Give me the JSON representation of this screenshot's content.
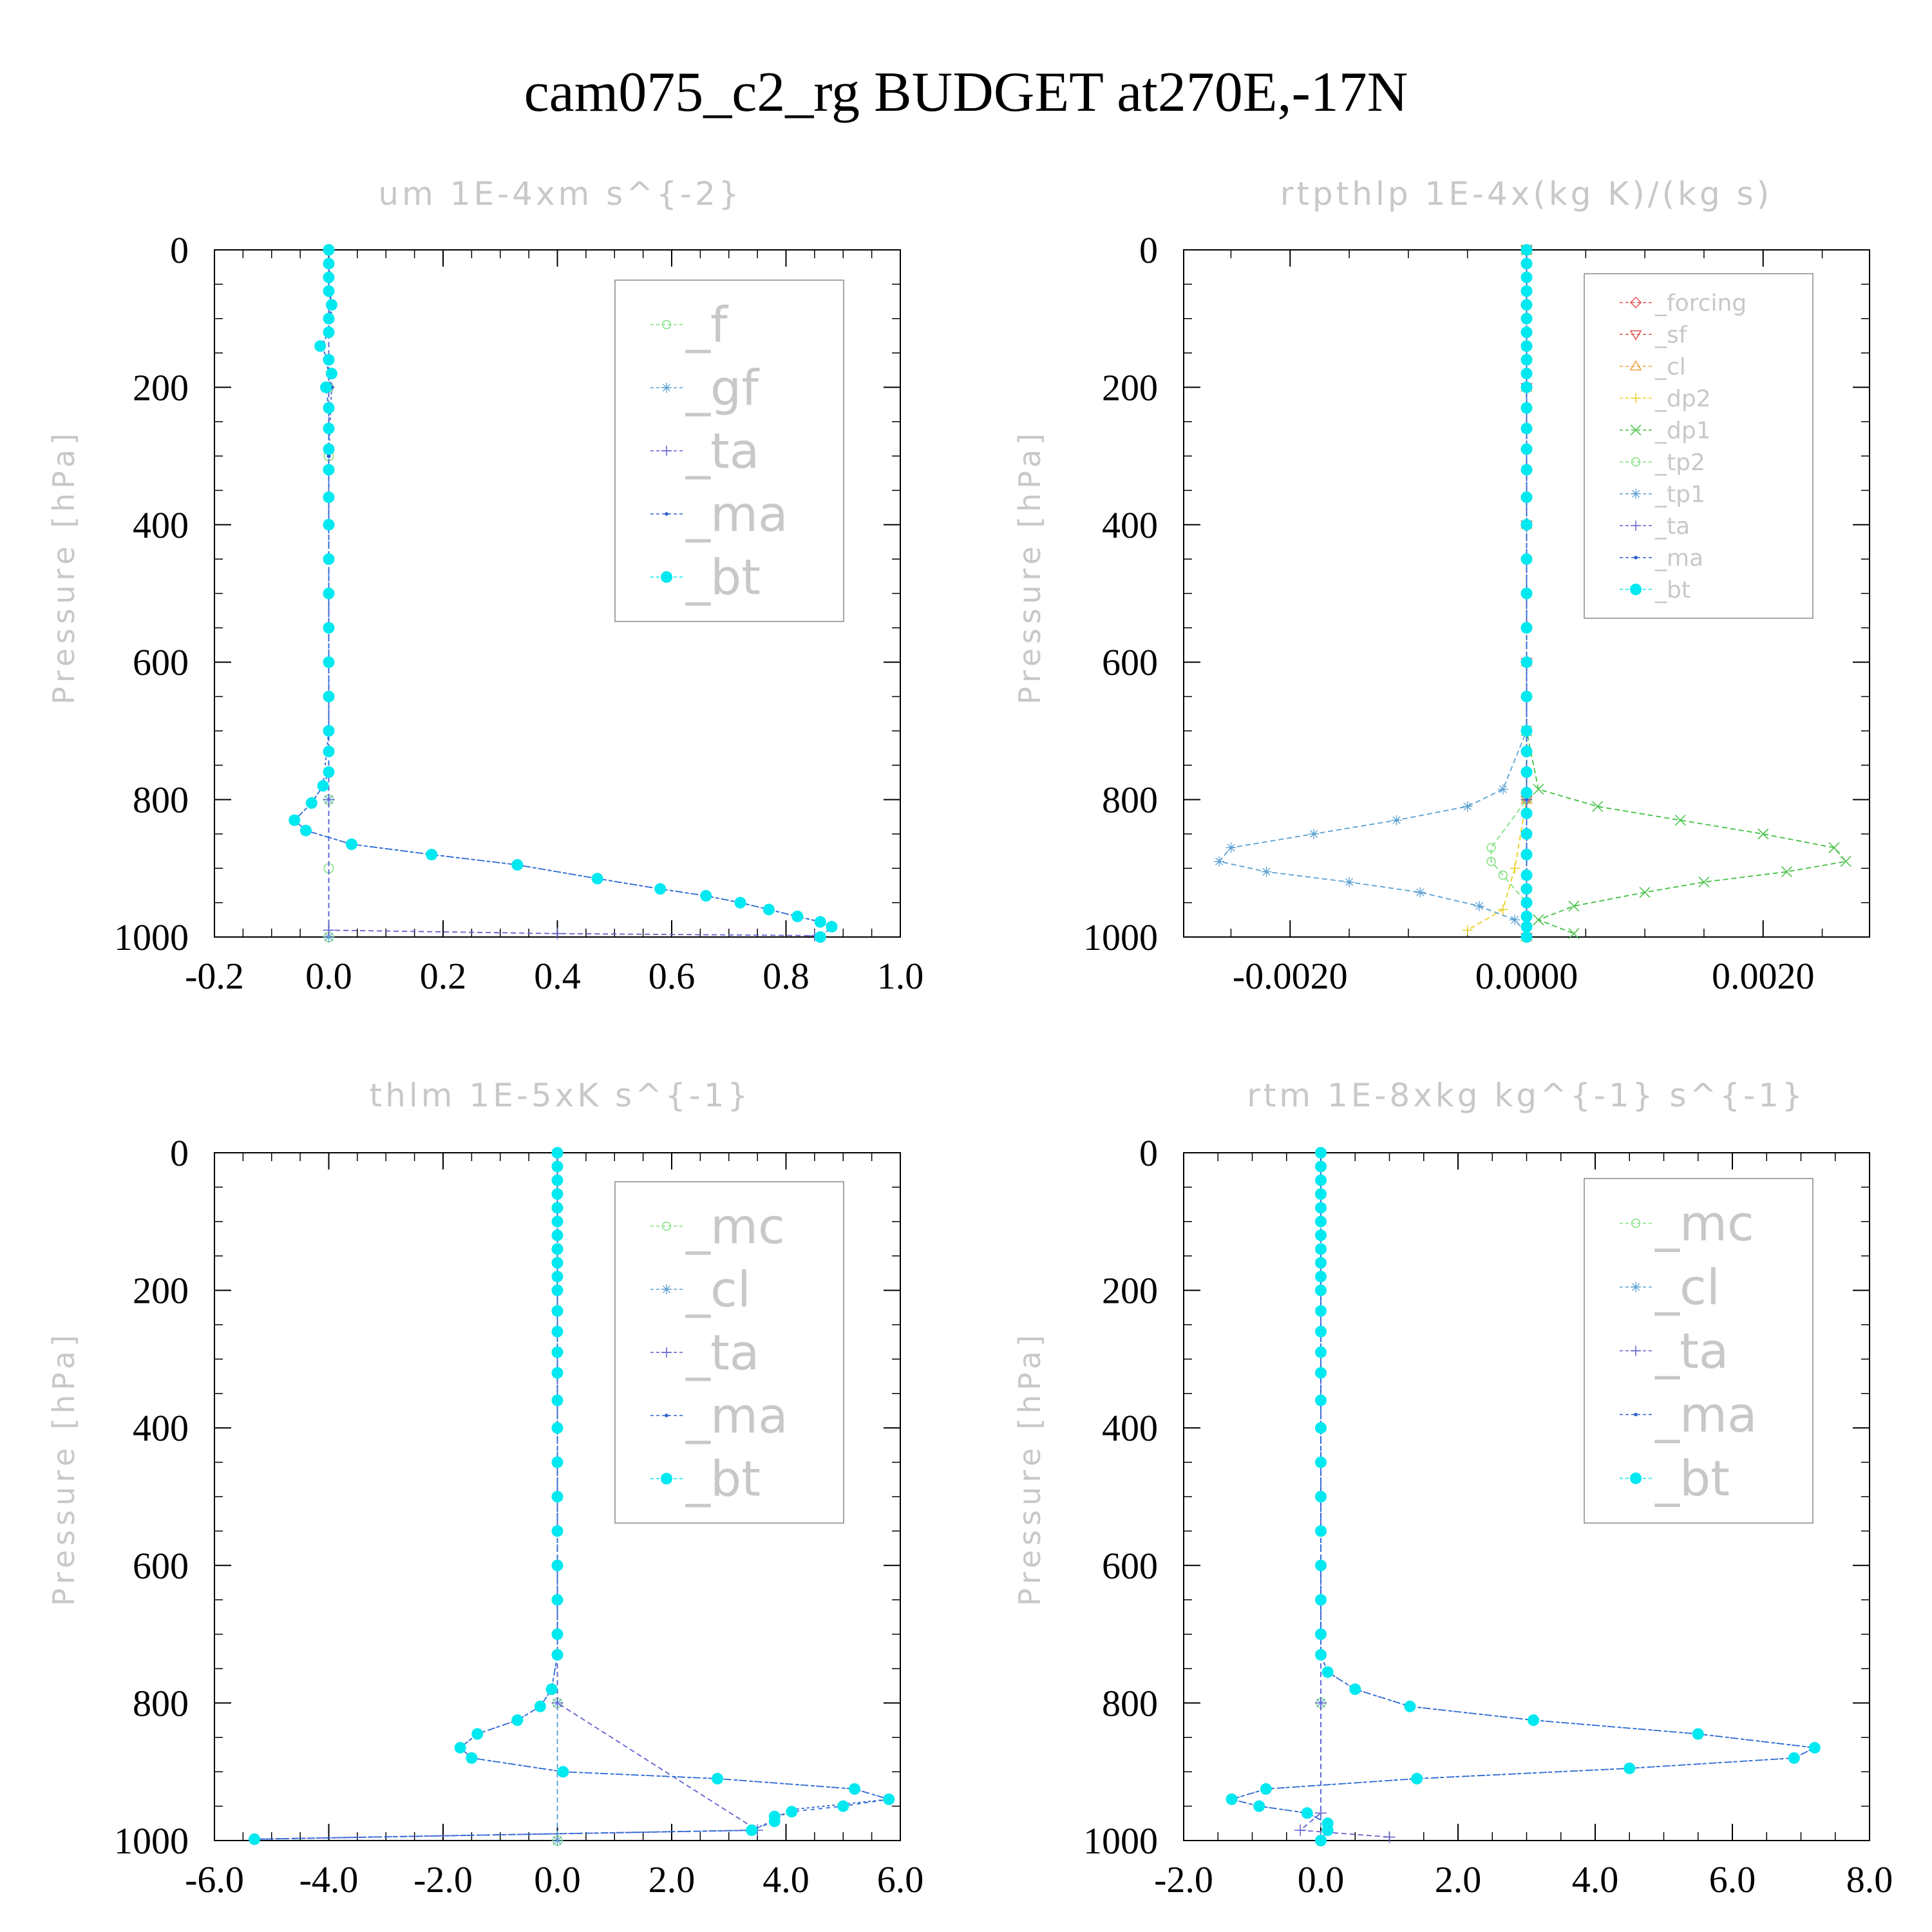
{
  "title": "cam075_c2_rg  BUDGET at270E,-17N",
  "chart_data": [
    {
      "type": "line",
      "title": "um   1E-4xm s^{-2}",
      "ylabel": "Pressure [hPa]",
      "ylim": [
        0,
        1000
      ],
      "y_inverted": true,
      "xlim": [
        -0.2,
        1.0
      ],
      "xticks": [
        "-0.2",
        "0.0",
        "0.2",
        "0.4",
        "0.6",
        "0.8",
        "1.0"
      ],
      "yticks": [
        "0",
        "200",
        "400",
        "600",
        "800",
        "1000"
      ],
      "legend_placement": "top-right",
      "legend_font": "large",
      "series": [
        {
          "name": "_f",
          "color": "#7ee07e",
          "marker": "circle-open",
          "x": [
            0,
            0,
            0,
            0,
            0,
            0,
            0,
            0,
            0,
            0,
            0
          ],
          "y": [
            0,
            100,
            200,
            300,
            400,
            500,
            600,
            700,
            800,
            900,
            1000
          ]
        },
        {
          "name": "_gf",
          "color": "#5aa0d2",
          "marker": "star",
          "x": [
            0,
            0,
            0,
            0,
            0,
            0
          ],
          "y": [
            0,
            200,
            400,
            600,
            800,
            1000
          ]
        },
        {
          "name": "_ta",
          "color": "#6060d0",
          "marker": "plus",
          "x": [
            0,
            0,
            0,
            0,
            0,
            0,
            0.4,
            0.85
          ],
          "y": [
            0,
            200,
            400,
            600,
            800,
            990,
            995,
            998
          ]
        },
        {
          "name": "_ma",
          "color": "#3060d0",
          "marker": "dot",
          "x": [
            0,
            0.005,
            -0.01,
            0.005,
            0,
            0,
            0,
            -0.01,
            -0.03,
            -0.06,
            -0.04,
            0.04,
            0.18,
            0.33,
            0.47,
            0.58,
            0.66,
            0.72,
            0.77,
            0.82,
            0.86,
            0.88,
            0.86
          ],
          "y": [
            0,
            100,
            140,
            200,
            300,
            500,
            700,
            780,
            805,
            830,
            845,
            865,
            880,
            895,
            915,
            930,
            940,
            950,
            960,
            970,
            978,
            985,
            1000
          ]
        },
        {
          "name": "_bt",
          "color": "#00e8f0",
          "marker": "dot-filled",
          "x": [
            0,
            0,
            0,
            0,
            0.005,
            0,
            0,
            -0.015,
            0,
            0.005,
            -0.005,
            0,
            0,
            0,
            0,
            0,
            0,
            0,
            0,
            0,
            0,
            0,
            0,
            0,
            0,
            -0.01,
            -0.03,
            -0.06,
            -0.04,
            0.04,
            0.18,
            0.33,
            0.47,
            0.58,
            0.66,
            0.72,
            0.77,
            0.82,
            0.86,
            0.88,
            0.86
          ],
          "y": [
            0,
            20,
            40,
            60,
            80,
            100,
            120,
            140,
            160,
            180,
            200,
            230,
            260,
            290,
            320,
            360,
            400,
            450,
            500,
            550,
            600,
            650,
            700,
            730,
            760,
            780,
            805,
            830,
            845,
            865,
            880,
            895,
            915,
            930,
            940,
            950,
            960,
            970,
            978,
            985,
            1000
          ]
        }
      ]
    },
    {
      "type": "line",
      "title": "rtpthlp   1E-4x(kg K)/(kg s)",
      "ylabel": "Pressure [hPa]",
      "ylim": [
        0,
        1000
      ],
      "y_inverted": true,
      "xlim": [
        -0.0029,
        0.0029
      ],
      "xticks": [
        "-0.0020",
        "0.0000",
        "0.0020"
      ],
      "xtick_values": [
        -0.002,
        0,
        0.002
      ],
      "yticks": [
        "0",
        "200",
        "400",
        "600",
        "800",
        "1000"
      ],
      "legend_placement": "top-right",
      "legend_font": "small",
      "series": [
        {
          "name": "_forcing",
          "color": "#e05050",
          "marker": "diamond",
          "x": [
            0,
            0,
            0,
            0,
            0,
            0
          ],
          "y": [
            0,
            200,
            400,
            600,
            800,
            1000
          ]
        },
        {
          "name": "_sf",
          "color": "#e05050",
          "marker": "tri-down",
          "x": [
            0,
            0,
            0,
            0,
            0,
            0
          ],
          "y": [
            0,
            200,
            400,
            600,
            800,
            1000
          ]
        },
        {
          "name": "_cl",
          "color": "#f0a040",
          "marker": "tri-up",
          "x": [
            0,
            0,
            0,
            0,
            0,
            0
          ],
          "y": [
            0,
            200,
            400,
            600,
            800,
            1000
          ]
        },
        {
          "name": "_dp2",
          "color": "#e8d020",
          "marker": "plus",
          "x": [
            0,
            0,
            0,
            -0.0001,
            -0.0002,
            -0.0005
          ],
          "y": [
            0,
            400,
            800,
            900,
            960,
            990
          ]
        },
        {
          "name": "_dp1",
          "color": "#40c040",
          "marker": "x",
          "x": [
            0,
            0,
            0.0001,
            0.0006,
            0.0013,
            0.002,
            0.0026,
            0.0027,
            0.0022,
            0.0015,
            0.001,
            0.0004,
            0.0001,
            0.0004
          ],
          "y": [
            0,
            700,
            785,
            810,
            830,
            850,
            870,
            890,
            905,
            920,
            935,
            955,
            975,
            995
          ]
        },
        {
          "name": "_tp2",
          "color": "#7ee07e",
          "marker": "circle-open",
          "x": [
            0,
            0,
            -0.0003,
            -0.0003,
            -0.0002,
            0,
            0
          ],
          "y": [
            0,
            800,
            870,
            890,
            910,
            950,
            1000
          ]
        },
        {
          "name": "_tp1",
          "color": "#5aa0d2",
          "marker": "star",
          "x": [
            0,
            0,
            -0.0002,
            -0.0005,
            -0.0011,
            -0.0018,
            -0.0025,
            -0.0026,
            -0.0022,
            -0.0015,
            -0.0009,
            -0.0004,
            -0.0001,
            0
          ],
          "y": [
            0,
            700,
            785,
            810,
            830,
            850,
            870,
            890,
            905,
            920,
            935,
            955,
            975,
            995
          ]
        },
        {
          "name": "_ta",
          "color": "#6060d0",
          "marker": "plus",
          "x": [
            0,
            0,
            0,
            0,
            0,
            0
          ],
          "y": [
            0,
            200,
            400,
            600,
            800,
            1000
          ]
        },
        {
          "name": "_ma",
          "color": "#3060d0",
          "marker": "dot",
          "x": [
            0,
            0,
            0,
            0,
            0,
            0
          ],
          "y": [
            0,
            200,
            400,
            600,
            800,
            1000
          ]
        },
        {
          "name": "_bt",
          "color": "#00e8f0",
          "marker": "dot-filled",
          "x": [
            0,
            0,
            0,
            0,
            0,
            0,
            0,
            0,
            0,
            0,
            0,
            0,
            0,
            0,
            0,
            0,
            0,
            0,
            0,
            0,
            0,
            0,
            0,
            0,
            0,
            0,
            0,
            0,
            0,
            0,
            0,
            0,
            0,
            0,
            0
          ],
          "y": [
            0,
            20,
            40,
            60,
            80,
            100,
            120,
            140,
            160,
            180,
            200,
            230,
            260,
            290,
            320,
            360,
            400,
            450,
            500,
            550,
            600,
            650,
            700,
            730,
            760,
            790,
            820,
            850,
            880,
            910,
            930,
            950,
            970,
            985,
            1000
          ]
        }
      ]
    },
    {
      "type": "line",
      "title": "thlm   1E-5xK s^{-1}",
      "ylabel": "Pressure [hPa]",
      "ylim": [
        0,
        1000
      ],
      "y_inverted": true,
      "xlim": [
        -6.0,
        6.0
      ],
      "xticks": [
        "-6.0",
        "-4.0",
        "-2.0",
        "0.0",
        "2.0",
        "4.0",
        "6.0"
      ],
      "yticks": [
        "0",
        "200",
        "400",
        "600",
        "800",
        "1000"
      ],
      "legend_placement": "top-right",
      "legend_font": "large",
      "series": [
        {
          "name": "_mc",
          "color": "#7ee07e",
          "marker": "circle-open",
          "x": [
            0,
            0,
            0,
            0,
            0,
            0
          ],
          "y": [
            0,
            200,
            400,
            600,
            800,
            1000
          ]
        },
        {
          "name": "_cl",
          "color": "#5aa0d2",
          "marker": "star",
          "x": [
            0,
            0,
            0,
            0,
            0,
            0
          ],
          "y": [
            0,
            200,
            400,
            600,
            800,
            1000
          ]
        },
        {
          "name": "_ta",
          "color": "#6060d0",
          "marker": "plus",
          "x": [
            0,
            0,
            0,
            0,
            0,
            3.5,
            -5.3
          ],
          "y": [
            0,
            200,
            400,
            600,
            800,
            985,
            998
          ]
        },
        {
          "name": "_ma",
          "color": "#3060d0",
          "marker": "dot",
          "x": [
            0,
            0,
            0,
            -0.1,
            -0.3,
            -0.7,
            -1.4,
            -1.7,
            -1.5,
            0.1,
            2.8,
            5.2,
            5.8,
            4.1,
            3.8,
            3.4,
            -5.3
          ],
          "y": [
            0,
            400,
            730,
            780,
            805,
            825,
            845,
            865,
            880,
            900,
            910,
            925,
            940,
            955,
            970,
            985,
            998
          ]
        },
        {
          "name": "_bt",
          "color": "#00e8f0",
          "marker": "dot-filled",
          "x": [
            0,
            0,
            0,
            0,
            0,
            0,
            0,
            0,
            0,
            0,
            0,
            0,
            0,
            0,
            0,
            0,
            0,
            0,
            0,
            0,
            0,
            0,
            0,
            0,
            -0.1,
            -0.3,
            -0.7,
            -1.4,
            -1.7,
            -1.5,
            0.1,
            2.8,
            5.2,
            5.8,
            5.0,
            4.1,
            3.8,
            3.8,
            3.4,
            -5.3
          ],
          "y": [
            0,
            20,
            40,
            60,
            80,
            100,
            120,
            140,
            160,
            180,
            200,
            230,
            260,
            290,
            320,
            360,
            400,
            450,
            500,
            550,
            600,
            650,
            700,
            730,
            780,
            805,
            825,
            845,
            865,
            880,
            900,
            910,
            925,
            940,
            950,
            958,
            965,
            972,
            985,
            998
          ]
        }
      ]
    },
    {
      "type": "line",
      "title": "rtm   1E-8xkg kg^{-1} s^{-1}",
      "ylabel": "Pressure [hPa]",
      "ylim": [
        0,
        1000
      ],
      "y_inverted": true,
      "xlim": [
        -2.0,
        8.0
      ],
      "xticks": [
        "-2.0",
        "0.0",
        "2.0",
        "4.0",
        "6.0",
        "8.0"
      ],
      "yticks": [
        "0",
        "200",
        "400",
        "600",
        "800",
        "1000"
      ],
      "legend_placement": "top-right",
      "legend_font": "large",
      "series": [
        {
          "name": "_mc",
          "color": "#7ee07e",
          "marker": "circle-open",
          "x": [
            0,
            0,
            0,
            0,
            0,
            0
          ],
          "y": [
            0,
            200,
            400,
            600,
            800,
            1000
          ]
        },
        {
          "name": "_cl",
          "color": "#5aa0d2",
          "marker": "star",
          "x": [
            0,
            0,
            0,
            0,
            0,
            0
          ],
          "y": [
            0,
            200,
            400,
            600,
            800,
            1000
          ]
        },
        {
          "name": "_ta",
          "color": "#6060d0",
          "marker": "plus",
          "x": [
            0,
            0,
            0,
            0,
            -0.3,
            1.0
          ],
          "y": [
            0,
            400,
            800,
            960,
            985,
            995
          ]
        },
        {
          "name": "_ma",
          "color": "#3060d0",
          "marker": "dot",
          "x": [
            0,
            0,
            0,
            0.1,
            0.5,
            1.3,
            3.1,
            5.5,
            7.2,
            6.9,
            4.5,
            1.4,
            -0.8,
            -1.3,
            -0.9,
            -0.2,
            0.1,
            0.1,
            0
          ],
          "y": [
            0,
            400,
            730,
            755,
            780,
            805,
            825,
            845,
            865,
            880,
            895,
            910,
            925,
            940,
            950,
            960,
            975,
            985,
            1000
          ]
        },
        {
          "name": "_bt",
          "color": "#00e8f0",
          "marker": "dot-filled",
          "x": [
            0,
            0,
            0,
            0,
            0,
            0,
            0,
            0,
            0,
            0,
            0,
            0,
            0,
            0,
            0,
            0,
            0,
            0,
            0,
            0,
            0,
            0,
            0,
            0,
            0.1,
            0.5,
            1.3,
            3.1,
            5.5,
            7.2,
            6.9,
            4.5,
            1.4,
            -0.8,
            -1.3,
            -0.9,
            -0.2,
            0.1,
            0.1,
            0
          ],
          "y": [
            0,
            20,
            40,
            60,
            80,
            100,
            120,
            140,
            160,
            180,
            200,
            230,
            260,
            290,
            320,
            360,
            400,
            450,
            500,
            550,
            600,
            650,
            700,
            730,
            755,
            780,
            805,
            825,
            845,
            865,
            880,
            895,
            910,
            925,
            940,
            950,
            960,
            975,
            985,
            1000
          ]
        }
      ]
    }
  ]
}
